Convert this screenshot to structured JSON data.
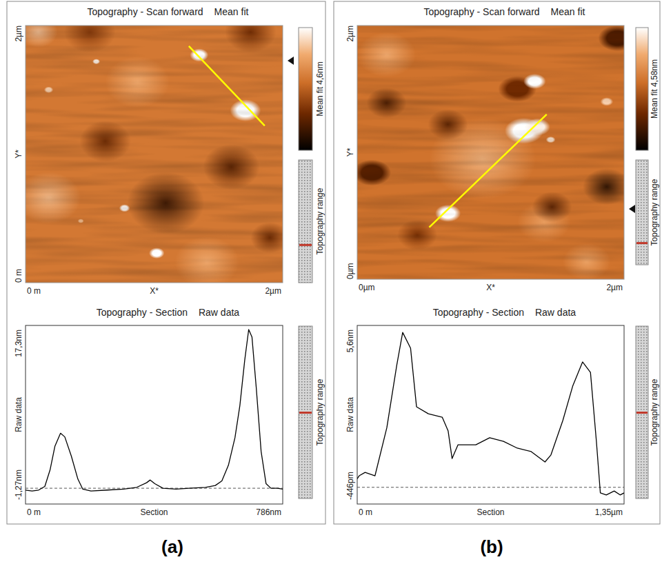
{
  "chart_data": [
    {
      "type": "afm",
      "label": "(a)",
      "image": {
        "type": "image",
        "title": "Topography - Scan forward",
        "subtitle": "Mean fit",
        "xlabel": "X*",
        "ylabel": "Y*",
        "xlim": [
          0,
          2
        ],
        "ylim": [
          0,
          2
        ],
        "xticks": [
          {
            "value": 0,
            "label": "0 m"
          },
          {
            "value": 2,
            "label": "2µm"
          }
        ],
        "yticks": [
          {
            "value": 0,
            "label": "0 m"
          },
          {
            "value": 2,
            "label": "2µm"
          }
        ],
        "colorbar": {
          "range": [
            0,
            4.6
          ],
          "label": "Mean fit 4,6nm"
        },
        "side_label": "Topography range",
        "base_level": 2.7,
        "features": [
          {
            "x": 1.09,
            "y": 0.62,
            "r": 0.3,
            "level": 0.6
          },
          {
            "x": 1.6,
            "y": 0.9,
            "r": 0.22,
            "level": 1.0
          },
          {
            "x": 0.62,
            "y": 1.1,
            "r": 0.2,
            "level": 1.2
          },
          {
            "x": 1.75,
            "y": 1.95,
            "r": 0.2,
            "level": 1.3
          },
          {
            "x": 0.5,
            "y": 1.95,
            "r": 0.2,
            "level": 1.6
          },
          {
            "x": 1.9,
            "y": 0.35,
            "r": 0.15,
            "level": 1.2
          },
          {
            "x": 0.18,
            "y": 0.66,
            "r": 0.25,
            "level": 3.8
          },
          {
            "x": 0.87,
            "y": 1.56,
            "r": 0.25,
            "level": 3.6
          },
          {
            "x": 1.41,
            "y": 0.16,
            "r": 0.25,
            "level": 3.6
          },
          {
            "x": 0.1,
            "y": 1.95,
            "r": 0.15,
            "level": 3.9
          },
          {
            "x": 1.35,
            "y": 1.77,
            "r": 0.06,
            "level": 4.6
          },
          {
            "x": 1.71,
            "y": 1.34,
            "r": 0.1,
            "level": 4.6
          },
          {
            "x": 0.55,
            "y": 1.72,
            "r": 0.025,
            "level": 4.4
          },
          {
            "x": 0.77,
            "y": 0.58,
            "r": 0.035,
            "level": 4.5
          },
          {
            "x": 1.02,
            "y": 0.23,
            "r": 0.05,
            "level": 4.6
          },
          {
            "x": 0.18,
            "y": 1.5,
            "r": 0.03,
            "level": 4.0
          },
          {
            "x": 0.43,
            "y": 0.48,
            "r": 0.02,
            "level": 3.8
          }
        ],
        "streaks": [
          {
            "x": [
              0.12,
              1.37
            ],
            "y": [
              1.36,
              1.36
            ],
            "level": 0.2
          }
        ],
        "section_line": {
          "x": [
            1.27,
            1.86
          ],
          "y": [
            1.84,
            1.22
          ],
          "color": "#ffff00"
        }
      },
      "section": {
        "type": "line",
        "title": "Topography - Section",
        "subtitle": "Raw data",
        "xlabel": "Section",
        "ylabel": "Raw data",
        "side_label": "Topography range",
        "xlim": [
          0,
          786
        ],
        "ylim": [
          -1.27,
          17.3
        ],
        "xticks": [
          {
            "value": 0,
            "label": "0 m"
          },
          {
            "value": 786,
            "label": "786nm"
          }
        ],
        "yticks": [
          {
            "value": -1.27,
            "label": "-1,27nm"
          },
          {
            "value": 17.3,
            "label": "17,3nm"
          }
        ],
        "reference_line": 0,
        "color": "#000000",
        "x": [
          0,
          20,
          40,
          59,
          75,
          90,
          107,
          120,
          140,
          160,
          175,
          200,
          250,
          300,
          340,
          370,
          381,
          395,
          420,
          460,
          500,
          550,
          580,
          600,
          620,
          640,
          655,
          670,
          682,
          692,
          705,
          720,
          735,
          750,
          770,
          786
        ],
        "values": [
          -0.2,
          -0.3,
          -0.2,
          0.2,
          2.0,
          4.6,
          6.0,
          5.6,
          3.5,
          1.0,
          -0.1,
          -0.3,
          -0.2,
          -0.1,
          0.1,
          0.6,
          0.9,
          0.5,
          0.0,
          -0.1,
          0.0,
          0.1,
          0.3,
          0.8,
          2.5,
          5.5,
          9.0,
          14.0,
          17.3,
          16.5,
          11.0,
          4.0,
          0.5,
          0.0,
          0.0,
          -0.1
        ]
      }
    },
    {
      "type": "afm",
      "label": "(b)",
      "image": {
        "type": "image",
        "title": "Topography - Scan forward",
        "subtitle": "Mean fit",
        "xlabel": "X*",
        "ylabel": "Y*",
        "xlim": [
          0,
          2
        ],
        "ylim": [
          0,
          2
        ],
        "xticks": [
          {
            "value": 0,
            "label": "0µm"
          },
          {
            "value": 2,
            "label": "2µm"
          }
        ],
        "yticks": [
          {
            "value": 0,
            "label": "0µm"
          },
          {
            "value": 2,
            "label": "2µm"
          }
        ],
        "colorbar": {
          "range": [
            0,
            4.58
          ],
          "label": "Mean fit 4,58nm"
        },
        "side_label": "Topography range",
        "base_level": 2.6,
        "features": [
          {
            "x": 0.94,
            "y": 0.95,
            "r": 0.4,
            "level": 3.7
          },
          {
            "x": 0.22,
            "y": 1.77,
            "r": 0.22,
            "level": 3.6
          },
          {
            "x": 1.72,
            "y": 0.14,
            "r": 0.18,
            "level": 3.5
          },
          {
            "x": 1.4,
            "y": 0.45,
            "r": 0.2,
            "level": 3.4
          },
          {
            "x": 0.22,
            "y": 1.39,
            "r": 0.15,
            "level": 0.9
          },
          {
            "x": 0.68,
            "y": 1.22,
            "r": 0.15,
            "level": 1.0
          },
          {
            "x": 1.87,
            "y": 0.73,
            "r": 0.18,
            "level": 0.4
          },
          {
            "x": 0.11,
            "y": 0.84,
            "r": 0.12,
            "level": 1.1
          },
          {
            "x": 1.46,
            "y": 0.57,
            "r": 0.15,
            "level": 1.0
          },
          {
            "x": 0.45,
            "y": 0.35,
            "r": 0.15,
            "level": 1.4
          },
          {
            "x": 1.95,
            "y": 1.9,
            "r": 0.12,
            "level": 1.0
          },
          {
            "x": 1.2,
            "y": 1.5,
            "r": 0.12,
            "level": 1.4
          },
          {
            "x": 1.33,
            "y": 1.56,
            "r": 0.07,
            "level": 4.58
          },
          {
            "x": 1.25,
            "y": 1.17,
            "r": 0.12,
            "level": 4.58
          },
          {
            "x": 1.35,
            "y": 1.2,
            "r": 0.08,
            "level": 4.4
          },
          {
            "x": 0.68,
            "y": 0.52,
            "r": 0.08,
            "level": 4.58
          },
          {
            "x": 1.87,
            "y": 1.4,
            "r": 0.04,
            "level": 4.0
          },
          {
            "x": 1.45,
            "y": 1.1,
            "r": 0.03,
            "level": 4.2
          }
        ],
        "section_line": {
          "x": [
            0.54,
            1.42
          ],
          "y": [
            0.41,
            1.3
          ],
          "color": "#ffff00"
        }
      },
      "section": {
        "type": "line",
        "title": "Topography - Section",
        "subtitle": "Raw data",
        "xlabel": "Section",
        "ylabel": "Raw data",
        "side_label": "Topography range",
        "xlim": [
          0,
          1.35
        ],
        "ylim": [
          -0.446,
          5.6
        ],
        "xticks": [
          {
            "value": 0,
            "label": "0 m"
          },
          {
            "value": 1.35,
            "label": "1,35µm"
          }
        ],
        "yticks": [
          {
            "value": -0.446,
            "label": "-446pm"
          },
          {
            "value": 5.6,
            "label": "5,6nm"
          }
        ],
        "reference_line": 0,
        "color": "#000000",
        "x": [
          0,
          0.01,
          0.04,
          0.09,
          0.15,
          0.2,
          0.23,
          0.27,
          0.3,
          0.36,
          0.43,
          0.46,
          0.48,
          0.51,
          0.6,
          0.67,
          0.74,
          0.81,
          0.88,
          0.95,
          0.98,
          1.04,
          1.09,
          1.14,
          1.18,
          1.21,
          1.23,
          1.26,
          1.3,
          1.33,
          1.35
        ],
        "values": [
          0.3,
          0.41,
          0.53,
          0.41,
          2.12,
          4.33,
          5.5,
          4.94,
          2.86,
          2.61,
          2.49,
          2.0,
          1.02,
          1.51,
          1.51,
          1.76,
          1.63,
          1.39,
          1.27,
          0.9,
          1.15,
          2.37,
          3.59,
          4.45,
          4.08,
          1.63,
          -0.2,
          -0.27,
          -0.13,
          -0.27,
          -0.2
        ]
      }
    }
  ]
}
